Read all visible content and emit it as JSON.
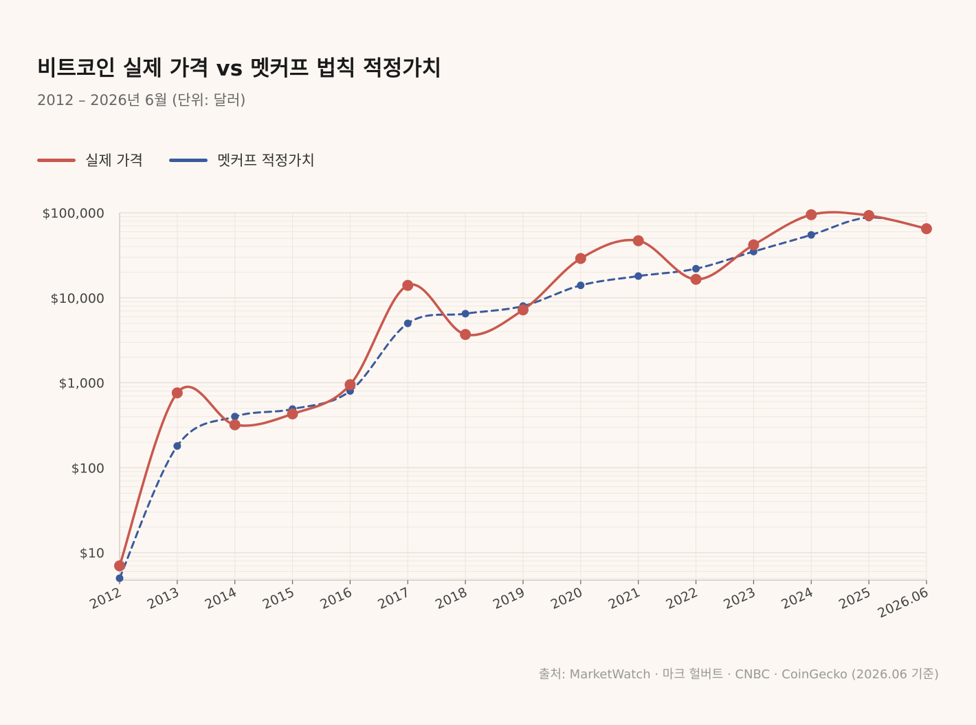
{
  "header": {
    "title": "비트코인 실제 가격 vs 멧커프 법칙 적정가치",
    "subtitle": "2012 – 2026년 6월 (단위: 달러)"
  },
  "legend": [
    {
      "name": "실제 가격",
      "color": "#c8584e"
    },
    {
      "name": "멧커프 적정가치",
      "color": "#3a5a9c"
    }
  ],
  "source": "출처: MarketWatch · 마크 헐버트 · CNBC · CoinGecko (2026.06 기준)",
  "chart_data": {
    "type": "line",
    "x": [
      "2012",
      "2013",
      "2014",
      "2015",
      "2016",
      "2017",
      "2018",
      "2019",
      "2020",
      "2021",
      "2022",
      "2023",
      "2024",
      "2025",
      "2026.06"
    ],
    "yscale": "log",
    "ylim": [
      4,
      100000
    ],
    "yticks": [
      10,
      100,
      1000,
      10000,
      100000
    ],
    "ytick_labels": [
      "$10",
      "$100",
      "$1,000",
      "$10,000",
      "$100,000"
    ],
    "grid": true,
    "legend_position": "top-left",
    "series": [
      {
        "name": "실제 가격",
        "color": "#c8584e",
        "style": "solid",
        "values": [
          7,
          760,
          320,
          430,
          950,
          14000,
          3700,
          7200,
          29000,
          47000,
          16500,
          42000,
          95000,
          93000,
          65000
        ]
      },
      {
        "name": "멧커프 적정가치",
        "color": "#3a5a9c",
        "style": "dashed",
        "values": [
          5,
          180,
          400,
          490,
          800,
          5000,
          6500,
          8000,
          14000,
          18000,
          22000,
          35000,
          55000,
          88000,
          65000
        ]
      }
    ]
  }
}
